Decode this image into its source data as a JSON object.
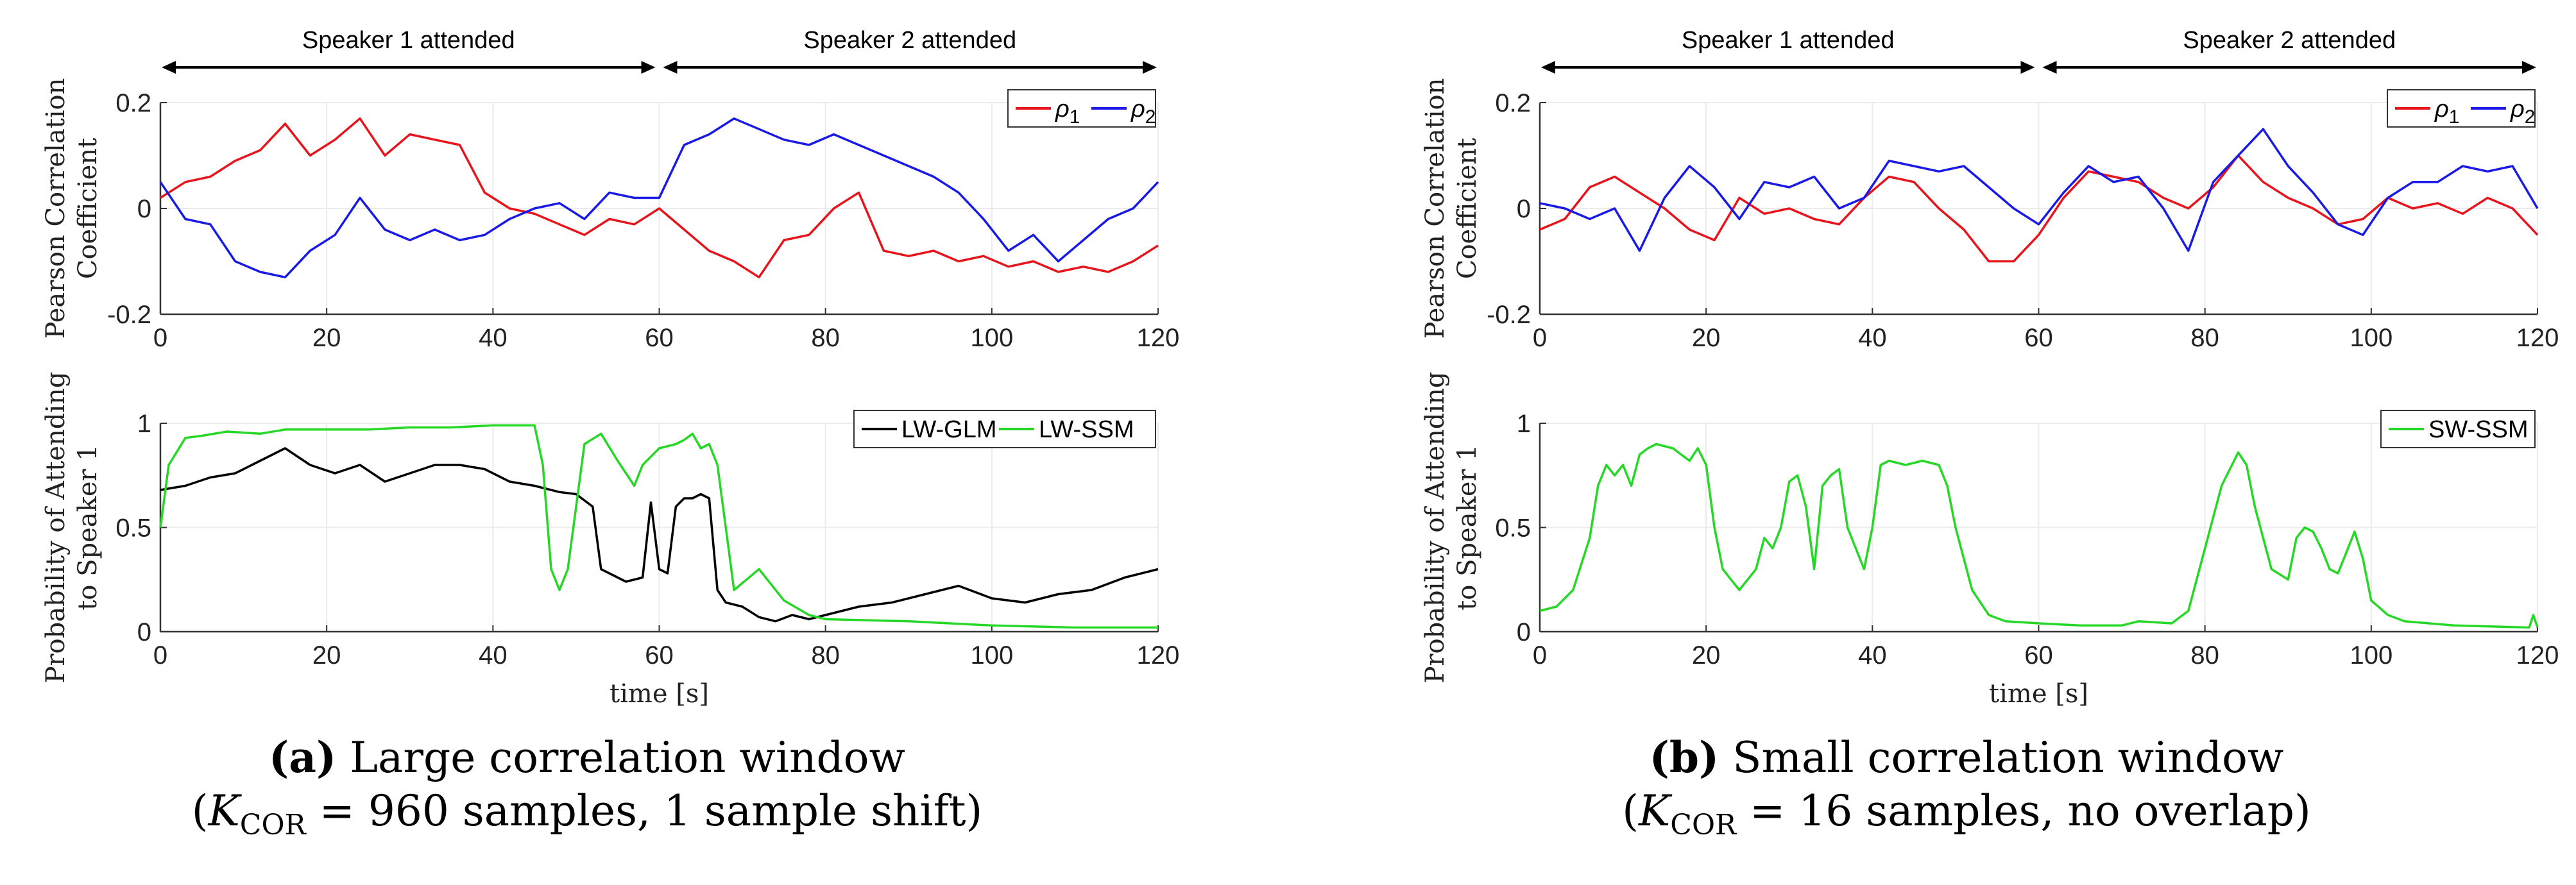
{
  "chart_data": [
    {
      "id": "a_top",
      "type": "line",
      "ylabel_line1": "Pearson Correlation",
      "ylabel_line2": "Coefficient",
      "xlabel": "",
      "xlim": [
        0,
        120
      ],
      "ylim": [
        -0.2,
        0.2
      ],
      "xticks": [
        "0",
        "20",
        "40",
        "60",
        "80",
        "100",
        "120"
      ],
      "yticks": [
        "-0.2",
        "0",
        "0.2"
      ],
      "legend": [
        "ρ1",
        "ρ2"
      ],
      "legend_position": "top-right",
      "annotations": [
        "Speaker 1 attended",
        "Speaker 2 attended"
      ],
      "series": [
        {
          "name": "ρ1",
          "color": "#e8141c",
          "x": [
            0,
            3,
            6,
            9,
            12,
            15,
            18,
            21,
            24,
            27,
            30,
            33,
            36,
            39,
            42,
            45,
            48,
            51,
            54,
            57,
            60,
            63,
            66,
            69,
            72,
            75,
            78,
            81,
            84,
            87,
            90,
            93,
            96,
            99,
            102,
            105,
            108,
            111,
            114,
            117,
            120
          ],
          "y": [
            0.02,
            0.05,
            0.06,
            0.09,
            0.11,
            0.16,
            0.1,
            0.13,
            0.17,
            0.1,
            0.14,
            0.13,
            0.12,
            0.03,
            0.0,
            -0.01,
            -0.03,
            -0.05,
            -0.02,
            -0.03,
            0.0,
            -0.04,
            -0.08,
            -0.1,
            -0.13,
            -0.06,
            -0.05,
            0.0,
            0.03,
            -0.08,
            -0.09,
            -0.08,
            -0.1,
            -0.09,
            -0.11,
            -0.1,
            -0.12,
            -0.11,
            -0.12,
            -0.1,
            -0.07
          ]
        },
        {
          "name": "ρ2",
          "color": "#1a1ae6",
          "x": [
            0,
            3,
            6,
            9,
            12,
            15,
            18,
            21,
            24,
            27,
            30,
            33,
            36,
            39,
            42,
            45,
            48,
            51,
            54,
            57,
            60,
            63,
            66,
            69,
            72,
            75,
            78,
            81,
            84,
            87,
            90,
            93,
            96,
            99,
            102,
            105,
            108,
            111,
            114,
            117,
            120
          ],
          "y": [
            0.05,
            -0.02,
            -0.03,
            -0.1,
            -0.12,
            -0.13,
            -0.08,
            -0.05,
            0.02,
            -0.04,
            -0.06,
            -0.04,
            -0.06,
            -0.05,
            -0.02,
            0.0,
            0.01,
            -0.02,
            0.03,
            0.02,
            0.02,
            0.12,
            0.14,
            0.17,
            0.15,
            0.13,
            0.12,
            0.14,
            0.12,
            0.1,
            0.08,
            0.06,
            0.03,
            -0.02,
            -0.08,
            -0.05,
            -0.1,
            -0.06,
            -0.02,
            0.0,
            0.05
          ]
        }
      ]
    },
    {
      "id": "a_bottom",
      "type": "line",
      "ylabel_line1": "Probability of Attending",
      "ylabel_line2": "to Speaker 1",
      "xlabel": "time [s]",
      "xlim": [
        0,
        120
      ],
      "ylim": [
        0,
        1
      ],
      "xticks": [
        "0",
        "20",
        "40",
        "60",
        "80",
        "100",
        "120"
      ],
      "yticks": [
        "0",
        "0.5",
        "1"
      ],
      "legend": [
        "LW-GLM",
        "LW-SSM"
      ],
      "legend_position": "top-right",
      "series": [
        {
          "name": "LW-GLM",
          "color": "#000000",
          "x": [
            0,
            3,
            6,
            9,
            12,
            15,
            18,
            21,
            24,
            27,
            30,
            33,
            36,
            39,
            42,
            45,
            48,
            50,
            52,
            53,
            56,
            58,
            59,
            60,
            61,
            62,
            63,
            64,
            65,
            66,
            67,
            68,
            70,
            72,
            74,
            76,
            78,
            80,
            84,
            88,
            92,
            96,
            100,
            104,
            108,
            112,
            116,
            120
          ],
          "y": [
            0.68,
            0.7,
            0.74,
            0.76,
            0.82,
            0.88,
            0.8,
            0.76,
            0.8,
            0.72,
            0.76,
            0.8,
            0.8,
            0.78,
            0.72,
            0.7,
            0.67,
            0.66,
            0.6,
            0.3,
            0.24,
            0.26,
            0.62,
            0.3,
            0.28,
            0.6,
            0.64,
            0.64,
            0.66,
            0.64,
            0.2,
            0.14,
            0.12,
            0.07,
            0.05,
            0.08,
            0.06,
            0.08,
            0.12,
            0.14,
            0.18,
            0.22,
            0.16,
            0.14,
            0.18,
            0.2,
            0.26,
            0.3
          ]
        },
        {
          "name": "LW-SSM",
          "color": "#26d826",
          "x": [
            0,
            1,
            3,
            5,
            8,
            12,
            15,
            20,
            25,
            30,
            35,
            40,
            45,
            46,
            47,
            48,
            49,
            51,
            53,
            55,
            57,
            58,
            60,
            62,
            63,
            64,
            65,
            66,
            67,
            68,
            69,
            72,
            75,
            78,
            80,
            90,
            100,
            110,
            120
          ],
          "y": [
            0.5,
            0.8,
            0.93,
            0.94,
            0.96,
            0.95,
            0.97,
            0.97,
            0.97,
            0.98,
            0.98,
            0.99,
            0.99,
            0.8,
            0.3,
            0.2,
            0.3,
            0.9,
            0.95,
            0.82,
            0.7,
            0.8,
            0.88,
            0.9,
            0.92,
            0.95,
            0.88,
            0.9,
            0.8,
            0.5,
            0.2,
            0.3,
            0.15,
            0.08,
            0.06,
            0.05,
            0.03,
            0.02,
            0.02
          ]
        }
      ]
    },
    {
      "id": "b_top",
      "type": "line",
      "ylabel_line1": "Pearson Correlation",
      "ylabel_line2": "Coefficient",
      "xlabel": "",
      "xlim": [
        0,
        120
      ],
      "ylim": [
        -0.2,
        0.2
      ],
      "xticks": [
        "0",
        "20",
        "40",
        "60",
        "80",
        "100",
        "120"
      ],
      "yticks": [
        "-0.2",
        "0",
        "0.2"
      ],
      "legend": [
        "ρ1",
        "ρ2"
      ],
      "legend_position": "top-right",
      "annotations": [
        "Speaker 1 attended",
        "Speaker 2 attended"
      ],
      "series": [
        {
          "name": "ρ1",
          "color": "#e8141c",
          "x": [
            0,
            3,
            6,
            9,
            12,
            15,
            18,
            21,
            24,
            27,
            30,
            33,
            36,
            39,
            42,
            45,
            48,
            51,
            54,
            57,
            60,
            63,
            66,
            69,
            72,
            75,
            78,
            81,
            84,
            87,
            90,
            93,
            96,
            99,
            102,
            105,
            108,
            111,
            114,
            117,
            120
          ],
          "y": [
            -0.04,
            -0.02,
            0.04,
            0.06,
            0.03,
            0.0,
            -0.04,
            -0.06,
            0.02,
            -0.01,
            0.0,
            -0.02,
            -0.03,
            0.02,
            0.06,
            0.05,
            0.0,
            -0.04,
            -0.1,
            -0.1,
            -0.05,
            0.02,
            0.07,
            0.06,
            0.05,
            0.02,
            0.0,
            0.04,
            0.1,
            0.05,
            0.02,
            0.0,
            -0.03,
            -0.02,
            0.02,
            0.0,
            0.01,
            -0.01,
            0.02,
            0.0,
            -0.05
          ]
        },
        {
          "name": "ρ2",
          "color": "#1a1ae6",
          "x": [
            0,
            3,
            6,
            9,
            12,
            15,
            18,
            21,
            24,
            27,
            30,
            33,
            36,
            39,
            42,
            45,
            48,
            51,
            54,
            57,
            60,
            63,
            66,
            69,
            72,
            75,
            78,
            81,
            84,
            87,
            90,
            93,
            96,
            99,
            102,
            105,
            108,
            111,
            114,
            117,
            120
          ],
          "y": [
            0.01,
            0.0,
            -0.02,
            0.0,
            -0.08,
            0.02,
            0.08,
            0.04,
            -0.02,
            0.05,
            0.04,
            0.06,
            0.0,
            0.02,
            0.09,
            0.08,
            0.07,
            0.08,
            0.04,
            0.0,
            -0.03,
            0.03,
            0.08,
            0.05,
            0.06,
            0.0,
            -0.08,
            0.05,
            0.1,
            0.15,
            0.08,
            0.03,
            -0.03,
            -0.05,
            0.02,
            0.05,
            0.05,
            0.08,
            0.07,
            0.08,
            0.0
          ]
        }
      ]
    },
    {
      "id": "b_bottom",
      "type": "line",
      "ylabel_line1": "Probability of Attending",
      "ylabel_line2": "to Speaker 1",
      "xlabel": "time [s]",
      "xlim": [
        0,
        120
      ],
      "ylim": [
        0,
        1
      ],
      "xticks": [
        "0",
        "20",
        "40",
        "60",
        "80",
        "100",
        "120"
      ],
      "yticks": [
        "0",
        "0.5",
        "1"
      ],
      "legend": [
        "SW-SSM"
      ],
      "legend_position": "top-right",
      "series": [
        {
          "name": "SW-SSM",
          "color": "#26d826",
          "x": [
            0,
            2,
            4,
            6,
            7,
            8,
            9,
            10,
            11,
            12,
            13,
            14,
            16,
            18,
            19,
            20,
            21,
            22,
            23,
            24,
            26,
            27,
            28,
            29,
            30,
            31,
            32,
            33,
            34,
            35,
            36,
            37,
            38,
            39,
            40,
            41,
            42,
            44,
            46,
            48,
            49,
            50,
            52,
            54,
            56,
            60,
            65,
            70,
            72,
            76,
            78,
            80,
            82,
            84,
            85,
            86,
            88,
            90,
            91,
            92,
            93,
            94,
            95,
            96,
            97,
            98,
            99,
            100,
            102,
            104,
            110,
            119,
            119.5,
            120
          ],
          "y": [
            0.1,
            0.12,
            0.2,
            0.45,
            0.7,
            0.8,
            0.75,
            0.8,
            0.7,
            0.85,
            0.88,
            0.9,
            0.88,
            0.82,
            0.88,
            0.8,
            0.5,
            0.3,
            0.25,
            0.2,
            0.3,
            0.45,
            0.4,
            0.5,
            0.72,
            0.75,
            0.6,
            0.3,
            0.7,
            0.75,
            0.78,
            0.5,
            0.4,
            0.3,
            0.5,
            0.8,
            0.82,
            0.8,
            0.82,
            0.8,
            0.7,
            0.5,
            0.2,
            0.08,
            0.05,
            0.04,
            0.03,
            0.03,
            0.05,
            0.04,
            0.1,
            0.4,
            0.7,
            0.86,
            0.8,
            0.6,
            0.3,
            0.25,
            0.45,
            0.5,
            0.48,
            0.4,
            0.3,
            0.28,
            0.38,
            0.48,
            0.35,
            0.15,
            0.08,
            0.05,
            0.03,
            0.02,
            0.08,
            0.02
          ]
        }
      ]
    }
  ],
  "captions": {
    "a": {
      "letter": "(a)",
      "title": "Large correlation window",
      "k_label": "K",
      "k_sub": "COR",
      "detail": " = 960 samples, 1 sample shift)"
    },
    "b": {
      "letter": "(b)",
      "title": "Small correlation window",
      "k_label": "K",
      "k_sub": "COR",
      "detail": " = 16 samples, no overlap)"
    }
  }
}
